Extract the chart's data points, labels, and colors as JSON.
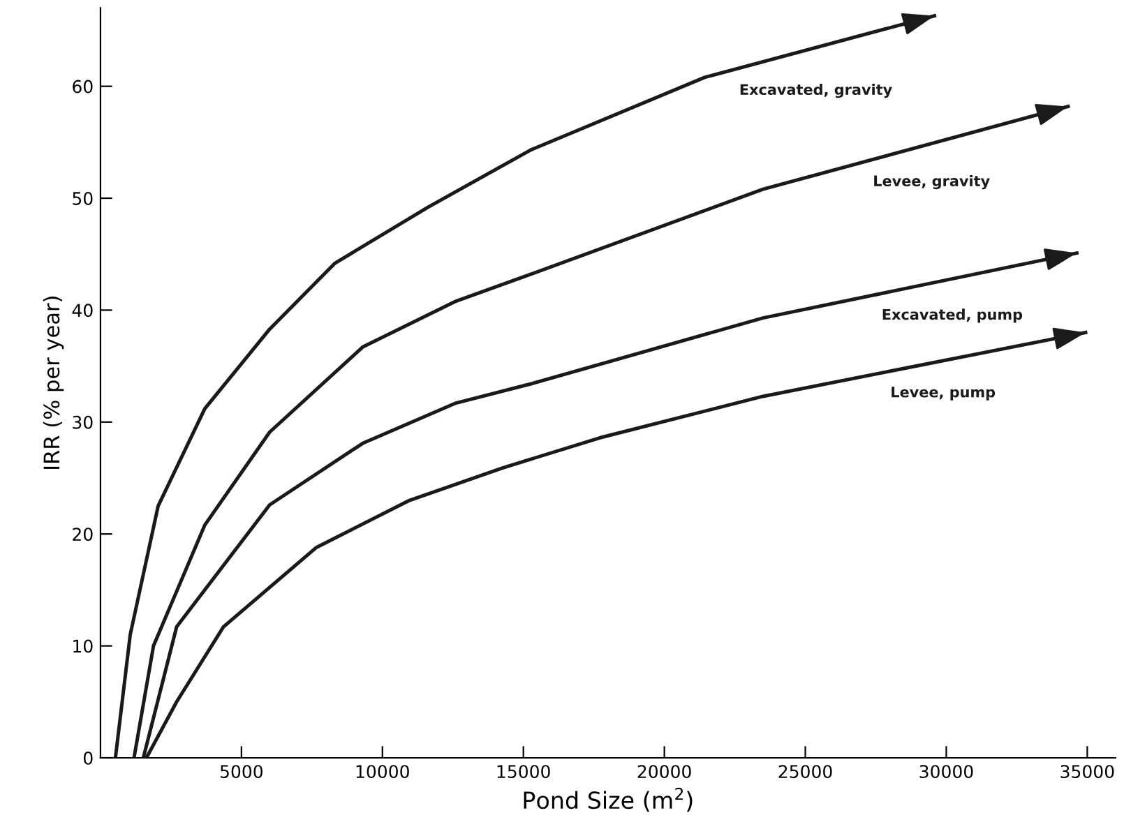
{
  "chart_data": {
    "type": "line",
    "xlabel": "Pond Size (m$^{2}$)",
    "ylabel": "IRR (% per year)",
    "xlim": [
      0,
      36000
    ],
    "ylim": [
      0,
      67
    ],
    "xticks": [
      5000,
      10000,
      15000,
      20000,
      25000,
      30000,
      35000
    ],
    "yticks": [
      0,
      10,
      20,
      30,
      40,
      50,
      60
    ],
    "grid": false,
    "marker": "none",
    "line_style": "solid",
    "series": [
      {
        "name": "Excavated, gravity",
        "color": "#1a1a1a",
        "x": [
          530,
          1055,
          2045,
          3700,
          6000,
          8320,
          11620,
          15250,
          21430,
          29580
        ],
        "values": [
          0,
          11,
          22.5,
          31.2,
          38.3,
          44.2,
          49.2,
          54.3,
          60.8,
          66.3
        ]
      },
      {
        "name": "Levee, gravity",
        "color": "#1a1a1a",
        "x": [
          1190,
          1880,
          3700,
          6000,
          9300,
          12610,
          15250,
          23500,
          34320
        ],
        "values": [
          0,
          10,
          20.8,
          29.1,
          36.7,
          40.8,
          43.2,
          50.8,
          58.2
        ]
      },
      {
        "name": "Excavated, pump",
        "color": "#1a1a1a",
        "x": [
          1520,
          2700,
          6000,
          9300,
          12610,
          15250,
          23500,
          34630
        ],
        "values": [
          0,
          11.7,
          22.6,
          28.1,
          31.7,
          33.4,
          39.3,
          45.1
        ]
      },
      {
        "name": "Levee, pump",
        "color": "#1a1a1a",
        "x": [
          1630,
          2700,
          4360,
          7660,
          10960,
          14260,
          17720,
          23500,
          34940
        ],
        "values": [
          0,
          5,
          11.7,
          18.8,
          23,
          25.9,
          28.6,
          32.3,
          38
        ]
      }
    ]
  }
}
